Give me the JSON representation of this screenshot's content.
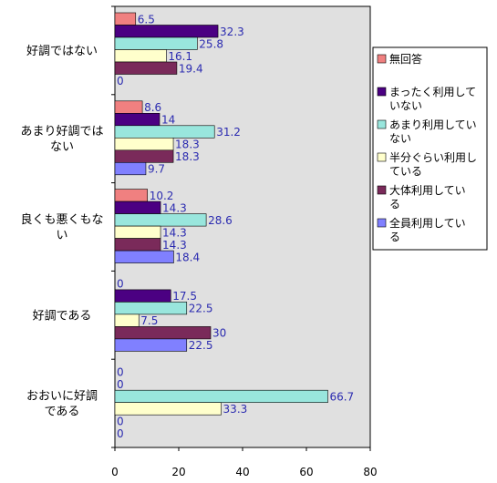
{
  "chart_data": {
    "type": "bar",
    "orientation": "horizontal",
    "categories": [
      "好調ではない",
      "あまり好調ではない",
      "良くも悪くもない",
      "好調である",
      "おおいに好調である"
    ],
    "category_label_lines": [
      [
        "好調ではない"
      ],
      [
        "あまり好調では",
        "ない"
      ],
      [
        "良くも悪くもな",
        "い"
      ],
      [
        "好調である"
      ],
      [
        "おおいに好調",
        "である"
      ]
    ],
    "series": [
      {
        "name": "無回答",
        "color": "#f08080",
        "values": [
          6.5,
          8.6,
          10.2,
          0,
          0
        ],
        "labels": [
          "6.5",
          "8.6",
          "10.2",
          "0",
          "0"
        ]
      },
      {
        "name": "まったく利用していない",
        "color": "#4b0082",
        "values": [
          32.3,
          14,
          14.3,
          17.5,
          0
        ],
        "labels": [
          "32.3",
          "14",
          "14.3",
          "17.5",
          "0"
        ]
      },
      {
        "name": "あまり利用していない",
        "color": "#99e6dd",
        "values": [
          25.8,
          31.2,
          28.6,
          22.5,
          66.7
        ],
        "labels": [
          "25.8",
          "31.2",
          "28.6",
          "22.5",
          "66.7"
        ]
      },
      {
        "name": "半分ぐらい利用している",
        "color": "#ffffcc",
        "values": [
          16.1,
          18.3,
          14.3,
          7.5,
          33.3
        ],
        "labels": [
          "16.1",
          "18.3",
          "14.3",
          "7.5",
          "33.3"
        ]
      },
      {
        "name": "大体利用している",
        "color": "#7a2a5a",
        "values": [
          19.4,
          18.3,
          14.3,
          30,
          0
        ],
        "labels": [
          "19.4",
          "18.3",
          "14.3",
          "30",
          "0"
        ]
      },
      {
        "name": "全員利用している",
        "color": "#8080ff",
        "values": [
          0,
          9.7,
          18.4,
          22.5,
          0
        ],
        "labels": [
          "0",
          "9.7",
          "18.4",
          "22.5",
          "0"
        ]
      }
    ],
    "legend_label_lines": [
      [
        "無回答"
      ],
      [
        "まったく利用して",
        "いない"
      ],
      [
        "あまり利用してい",
        "ない"
      ],
      [
        "半分ぐらい利用し",
        "ている"
      ],
      [
        "大体利用してい",
        "る"
      ],
      [
        "全員利用してい",
        "る"
      ]
    ],
    "xlim": [
      0,
      80
    ],
    "xticks": [
      "0",
      "20",
      "40",
      "60",
      "80"
    ],
    "grid": false,
    "plot_background": "#e0e0e0",
    "legend_position": "right"
  }
}
